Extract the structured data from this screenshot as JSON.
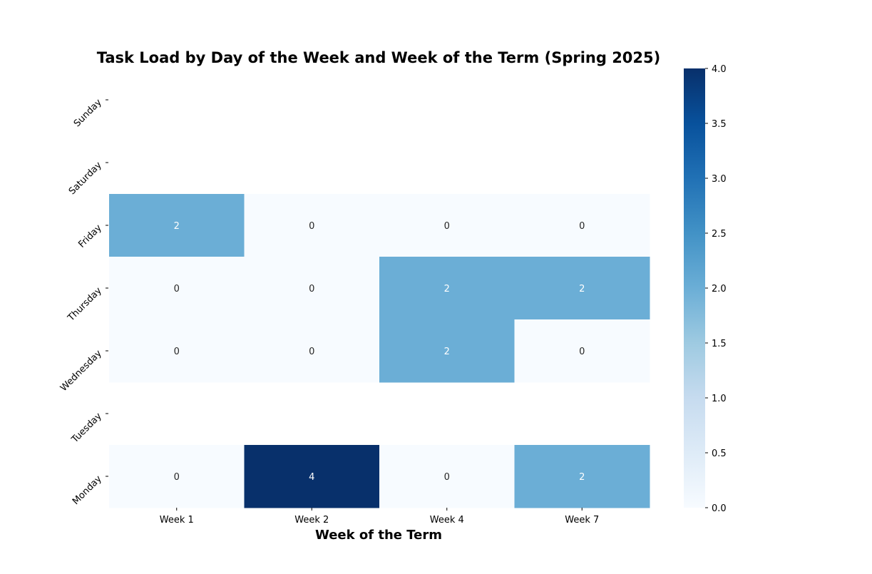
{
  "chart_data": {
    "type": "heatmap",
    "title": "Task Load by Day of the Week and Week of the Term (Spring 2025)",
    "xlabel": "Week of the Term",
    "ylabel": "",
    "columns": [
      "Week 1",
      "Week 2",
      "Week 4",
      "Week 7"
    ],
    "rows": [
      "Sunday",
      "Saturday",
      "Friday",
      "Thursday",
      "Wednesday",
      "Tuesday",
      "Monday"
    ],
    "values": [
      [
        null,
        null,
        null,
        null
      ],
      [
        null,
        null,
        null,
        null
      ],
      [
        2,
        0,
        0,
        0
      ],
      [
        0,
        0,
        2,
        2
      ],
      [
        0,
        0,
        2,
        0
      ],
      [
        null,
        null,
        null,
        null
      ],
      [
        0,
        4,
        0,
        2
      ]
    ],
    "colormap": "Blues",
    "colorbar": {
      "min": 0,
      "max": 4,
      "ticks": [
        "0.0",
        "0.5",
        "1.0",
        "1.5",
        "2.0",
        "2.5",
        "3.0",
        "3.5",
        "4.0"
      ]
    },
    "annotated": true,
    "grid": false
  }
}
